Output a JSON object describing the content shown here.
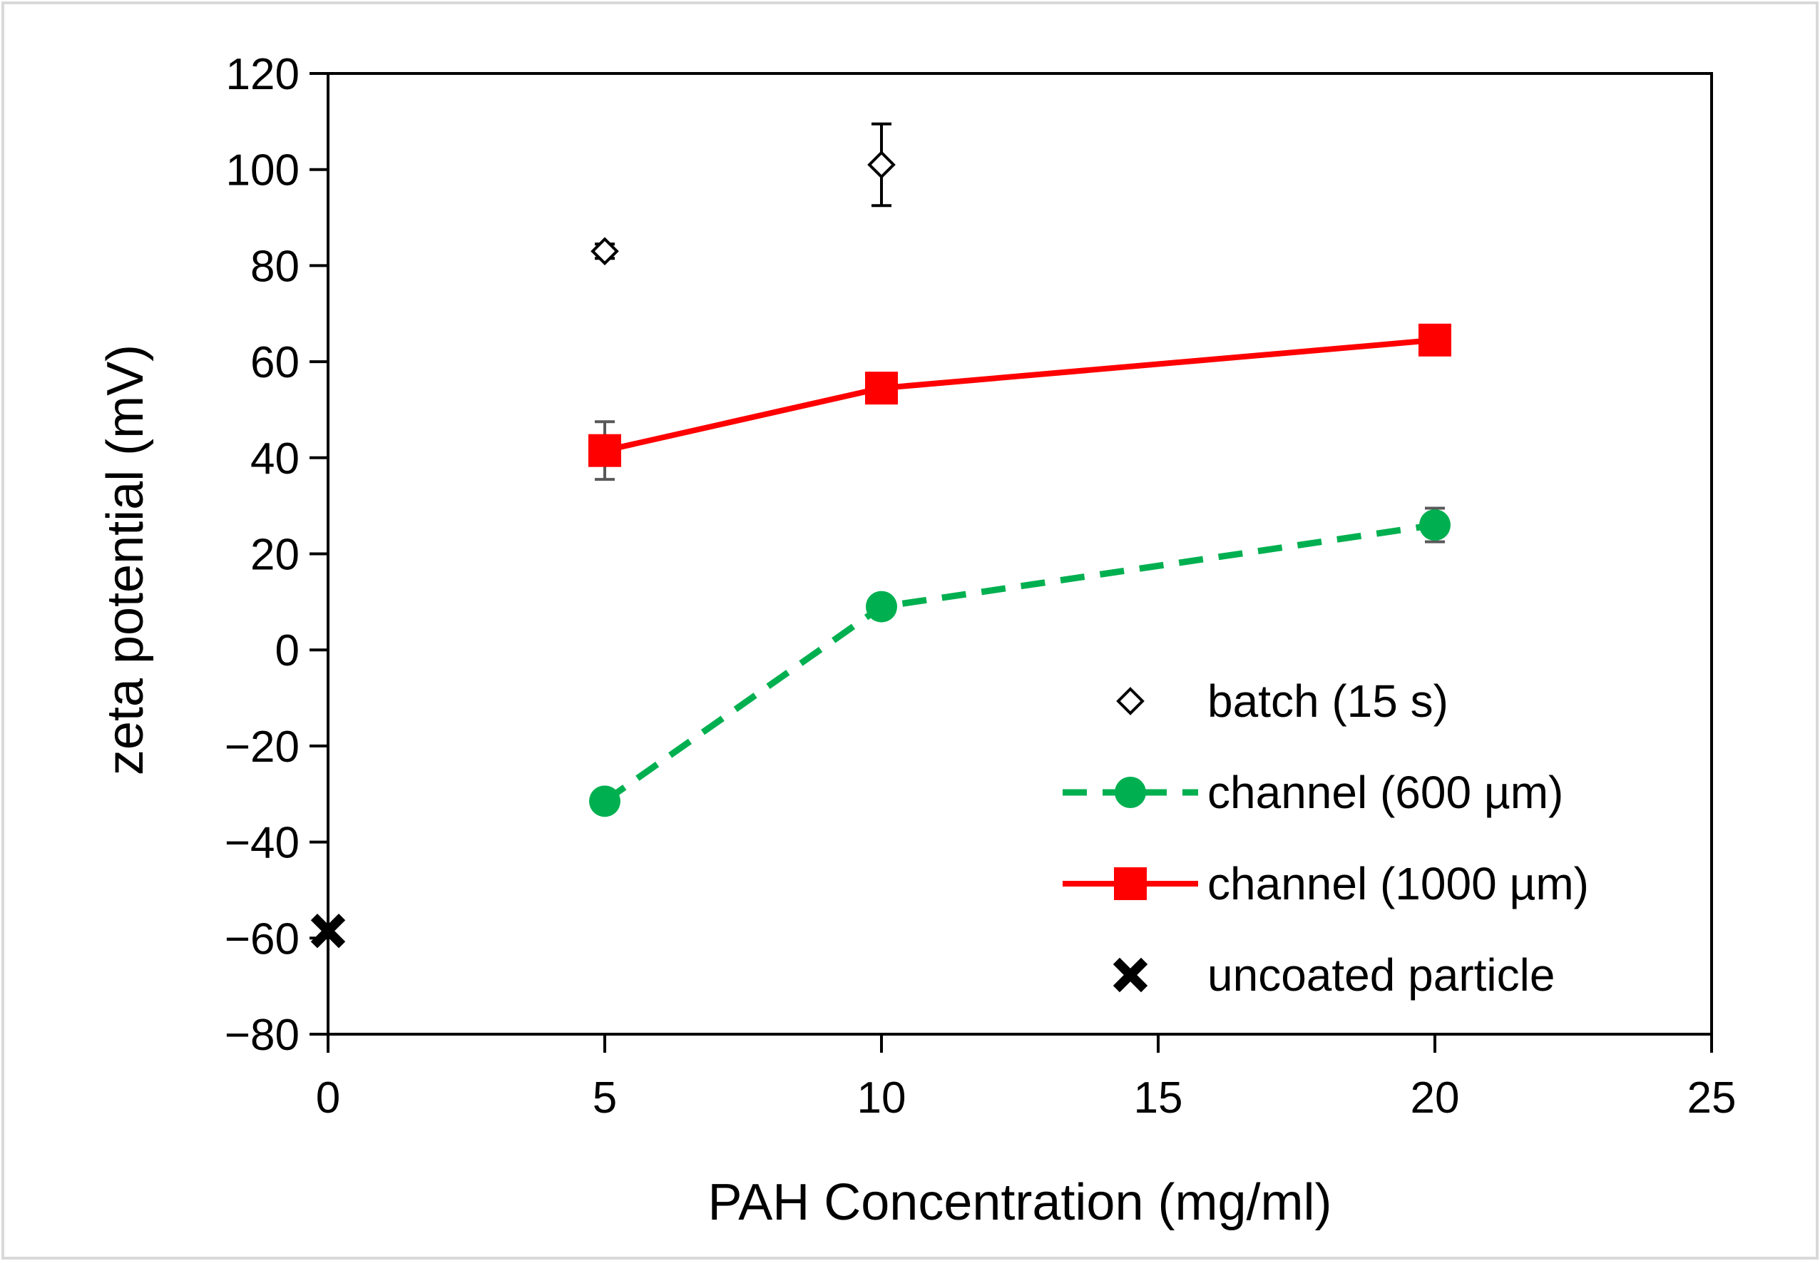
{
  "chart_data": {
    "type": "scatter",
    "title": "",
    "xlabel": "PAH Concentration (mg/ml)",
    "ylabel": "zeta potential (mV)",
    "xlim": [
      0,
      25
    ],
    "ylim": [
      -80,
      120
    ],
    "xticks": [
      0,
      5,
      10,
      15,
      20,
      25
    ],
    "yticks": [
      -80,
      -60,
      -40,
      -20,
      0,
      20,
      40,
      60,
      80,
      100,
      120
    ],
    "xtick_labels": [
      "0",
      "5",
      "10",
      "15",
      "20",
      "25"
    ],
    "ytick_labels": [
      "−80",
      "−60",
      "−40",
      "−20",
      "0",
      "20",
      "40",
      "60",
      "80",
      "100",
      "120"
    ],
    "grid": false,
    "legend_position": "bottom-right",
    "series": [
      {
        "name": "batch (15 s)",
        "marker": "diamond-open",
        "line": "none",
        "color": "#000000",
        "x": [
          5,
          10
        ],
        "y": [
          83,
          101
        ],
        "yerr": [
          1.5,
          8.5
        ]
      },
      {
        "name": "channel (600 µm)",
        "marker": "circle",
        "line": "dashed",
        "color": "#00b050",
        "x": [
          5,
          10,
          20
        ],
        "y": [
          -31.5,
          9,
          26
        ],
        "yerr": [
          0,
          0,
          3.5
        ]
      },
      {
        "name": "channel (1000 µm)",
        "marker": "square",
        "line": "solid",
        "color": "#ff0000",
        "x": [
          5,
          10,
          20
        ],
        "y": [
          41.5,
          54.5,
          64.5
        ],
        "yerr": [
          6,
          0,
          0
        ]
      },
      {
        "name": "uncoated particle",
        "marker": "x-filled",
        "line": "none",
        "color": "#000000",
        "x": [
          0
        ],
        "y": [
          -58.5
        ],
        "yerr": [
          0
        ]
      }
    ]
  }
}
